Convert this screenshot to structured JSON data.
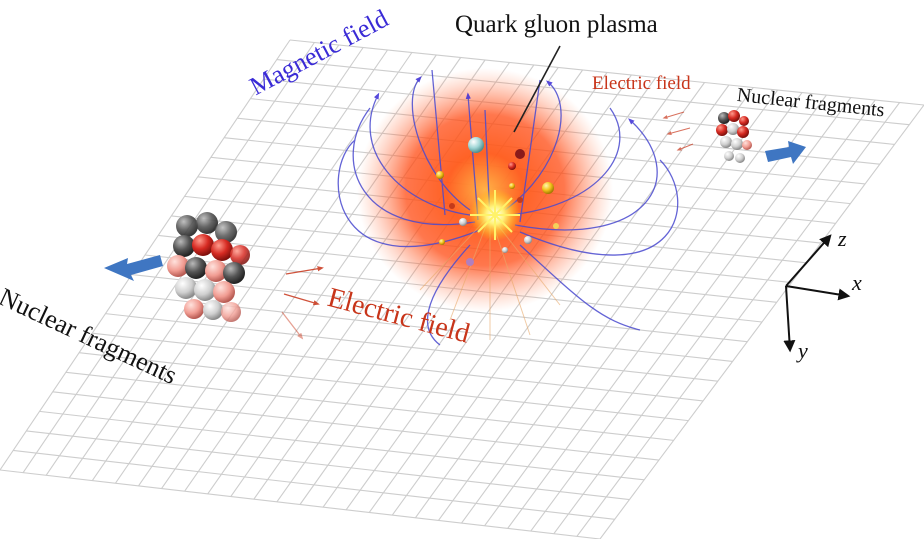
{
  "labels": {
    "quark_gluon_plasma": "Quark gluon plasma",
    "magnetic_field": "Magnetic field",
    "electric_field_top": "Electric field",
    "nuclear_fragments_top": "Nuclear fragments",
    "electric_field_main": "Electric field",
    "nuclear_fragments_bottom": "Nuclear fragments"
  },
  "axes": {
    "x": "x",
    "y": "y",
    "z": "z"
  },
  "colors": {
    "magnetic": "#3a2bd6",
    "electric": "#c8351a",
    "plasma": "#ff4a12",
    "arrow": "#3f76c2",
    "grid": "#cdcdcd",
    "nucleon_red": "#d62a22",
    "nucleon_dark": "#555555"
  }
}
